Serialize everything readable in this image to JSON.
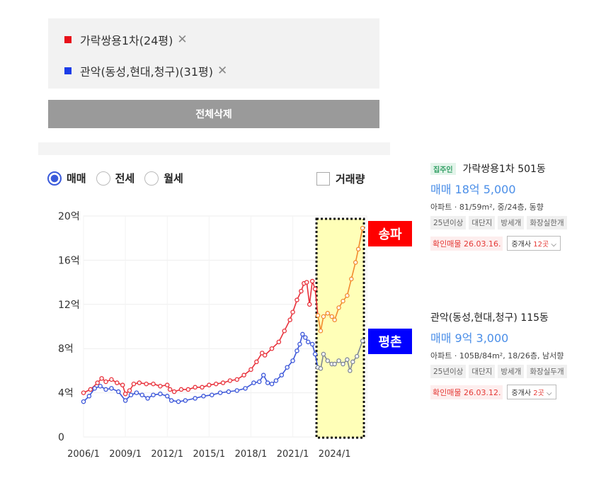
{
  "filters": [
    {
      "label": "가락쌍용1차(24평)",
      "color": "#e8101a"
    },
    {
      "label": "관악(동성,현대,청구)(31평)",
      "color": "#1b3ce8"
    }
  ],
  "delete_all_label": "전체삭제",
  "trade_types": [
    {
      "label": "매매",
      "selected": true
    },
    {
      "label": "전세",
      "selected": false
    },
    {
      "label": "월세",
      "selected": false
    }
  ],
  "volume_label": "거래량",
  "region_labels": [
    {
      "text": "송파",
      "color": "#ff0000"
    },
    {
      "text": "평촌",
      "color": "#0000ff"
    }
  ],
  "listings": [
    {
      "badge": "집주인",
      "title": "가락쌍용1차 501동",
      "price": "매매 18억 5,000",
      "spec": "아파트 · 81/59m², 중/24층, 동향",
      "tags": [
        "25년이상",
        "대단지",
        "방세개",
        "화장실한개"
      ],
      "confirm": "확인매물 26.03.16.",
      "agent_prefix": "중개사 ",
      "agent_count": "12곳",
      "agent_suffix": " ⌵"
    },
    {
      "badge": "",
      "title": "관악(동성,현대,청구) 115동",
      "price": "매매 9억 3,000",
      "spec": "아파트 · 105B/84m², 18/26층, 남서향",
      "tags": [
        "25년이상",
        "대단지",
        "방세개",
        "화장실두개"
      ],
      "confirm": "확인매물 26.03.12.",
      "agent_prefix": "중개사 ",
      "agent_count": "2곳",
      "agent_suffix": " ⌵"
    }
  ],
  "chart_data": {
    "type": "line",
    "title": "",
    "xlabel": "",
    "ylabel": "",
    "x_ticks": [
      "2006/1",
      "2009/1",
      "2012/1",
      "2015/1",
      "2018/1",
      "2021/1",
      "2024/1"
    ],
    "y_ticks": [
      "0",
      "4억",
      "8억",
      "12억",
      "16억",
      "20억"
    ],
    "ylim": [
      0,
      20
    ],
    "xlim": [
      2006.0,
      2026.3
    ],
    "highlight_range": [
      2022.7,
      2026.1
    ],
    "series": [
      {
        "name": "가락쌍용1차(24평)",
        "color": "#e8303a",
        "recent_color": "#f28a2e",
        "split_at": 2022.8,
        "points": [
          [
            2006.0,
            4.0
          ],
          [
            2006.5,
            4.3
          ],
          [
            2007.0,
            4.9
          ],
          [
            2007.3,
            5.3
          ],
          [
            2007.6,
            5.0
          ],
          [
            2008.0,
            5.2
          ],
          [
            2008.4,
            4.9
          ],
          [
            2008.8,
            4.7
          ],
          [
            2009.0,
            3.9
          ],
          [
            2009.3,
            4.2
          ],
          [
            2009.6,
            4.8
          ],
          [
            2010.0,
            4.9
          ],
          [
            2010.5,
            4.8
          ],
          [
            2011.0,
            4.8
          ],
          [
            2011.5,
            4.6
          ],
          [
            2012.0,
            4.7
          ],
          [
            2012.2,
            4.3
          ],
          [
            2012.5,
            4.1
          ],
          [
            2013.0,
            4.3
          ],
          [
            2013.5,
            4.3
          ],
          [
            2014.0,
            4.5
          ],
          [
            2014.5,
            4.5
          ],
          [
            2015.0,
            4.7
          ],
          [
            2015.5,
            4.8
          ],
          [
            2016.0,
            4.9
          ],
          [
            2016.5,
            5.1
          ],
          [
            2017.0,
            5.2
          ],
          [
            2017.5,
            5.6
          ],
          [
            2018.0,
            6.1
          ],
          [
            2018.4,
            6.8
          ],
          [
            2018.8,
            7.6
          ],
          [
            2019.0,
            7.4
          ],
          [
            2019.5,
            8.0
          ],
          [
            2020.0,
            8.6
          ],
          [
            2020.4,
            9.6
          ],
          [
            2020.8,
            10.6
          ],
          [
            2021.0,
            11.3
          ],
          [
            2021.3,
            12.4
          ],
          [
            2021.6,
            13.2
          ],
          [
            2021.8,
            13.9
          ],
          [
            2022.0,
            14.0
          ],
          [
            2022.2,
            12.0
          ],
          [
            2022.4,
            14.1
          ],
          [
            2022.6,
            13.4
          ],
          [
            2022.8,
            11.0
          ],
          [
            2023.0,
            9.6
          ],
          [
            2023.2,
            10.9
          ],
          [
            2023.5,
            11.2
          ],
          [
            2023.8,
            10.9
          ],
          [
            2024.0,
            10.6
          ],
          [
            2024.3,
            11.7
          ],
          [
            2024.6,
            12.3
          ],
          [
            2024.9,
            12.8
          ],
          [
            2025.2,
            14.3
          ],
          [
            2025.5,
            15.8
          ],
          [
            2025.7,
            17.0
          ],
          [
            2026.0,
            18.9
          ]
        ]
      },
      {
        "name": "관악(동성,현대,청구)(31평)",
        "color": "#3b56d9",
        "recent_color": "#7f8795",
        "split_at": 2022.8,
        "points": [
          [
            2006.0,
            3.2
          ],
          [
            2006.4,
            3.7
          ],
          [
            2006.8,
            4.4
          ],
          [
            2007.2,
            4.6
          ],
          [
            2007.6,
            4.3
          ],
          [
            2008.0,
            4.4
          ],
          [
            2008.5,
            4.1
          ],
          [
            2009.0,
            3.3
          ],
          [
            2009.4,
            3.8
          ],
          [
            2009.8,
            4.0
          ],
          [
            2010.2,
            3.8
          ],
          [
            2010.6,
            3.5
          ],
          [
            2011.0,
            3.8
          ],
          [
            2011.5,
            3.9
          ],
          [
            2012.0,
            3.7
          ],
          [
            2012.3,
            3.3
          ],
          [
            2012.8,
            3.2
          ],
          [
            2013.3,
            3.3
          ],
          [
            2014.0,
            3.5
          ],
          [
            2014.6,
            3.7
          ],
          [
            2015.2,
            3.8
          ],
          [
            2015.8,
            4.0
          ],
          [
            2016.4,
            4.1
          ],
          [
            2017.0,
            4.2
          ],
          [
            2017.6,
            4.4
          ],
          [
            2018.2,
            4.9
          ],
          [
            2018.6,
            5.0
          ],
          [
            2018.9,
            5.6
          ],
          [
            2019.2,
            4.9
          ],
          [
            2019.5,
            4.8
          ],
          [
            2019.8,
            5.1
          ],
          [
            2020.2,
            5.6
          ],
          [
            2020.6,
            6.3
          ],
          [
            2021.0,
            6.9
          ],
          [
            2021.3,
            7.8
          ],
          [
            2021.5,
            8.4
          ],
          [
            2021.7,
            9.3
          ],
          [
            2021.9,
            9.0
          ],
          [
            2022.1,
            8.6
          ],
          [
            2022.4,
            8.4
          ],
          [
            2022.6,
            7.5
          ],
          [
            2022.8,
            6.3
          ],
          [
            2023.0,
            6.2
          ],
          [
            2023.2,
            7.5
          ],
          [
            2023.5,
            6.9
          ],
          [
            2023.8,
            6.6
          ],
          [
            2024.0,
            6.6
          ],
          [
            2024.3,
            6.9
          ],
          [
            2024.6,
            6.6
          ],
          [
            2024.9,
            7.0
          ],
          [
            2025.1,
            6.0
          ],
          [
            2025.3,
            6.8
          ],
          [
            2025.6,
            7.3
          ],
          [
            2026.0,
            8.7
          ]
        ]
      }
    ]
  }
}
